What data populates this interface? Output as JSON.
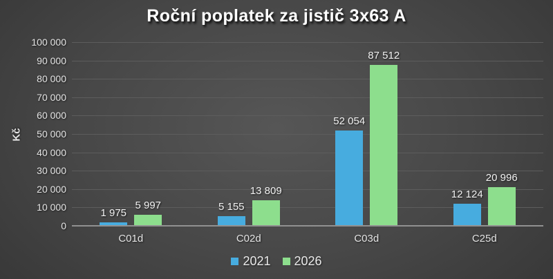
{
  "title": "Roční poplatek za jistič 3x63 A",
  "y_axis": {
    "title": "Kč",
    "ticks": [
      {
        "label": "100 000",
        "value": 100000
      },
      {
        "label": "90 000",
        "value": 90000
      },
      {
        "label": "80 000",
        "value": 80000
      },
      {
        "label": "70 000",
        "value": 70000
      },
      {
        "label": "60 000",
        "value": 60000
      },
      {
        "label": "50 000",
        "value": 50000
      },
      {
        "label": "40 000",
        "value": 40000
      },
      {
        "label": "30 000",
        "value": 30000
      },
      {
        "label": "20 000",
        "value": 20000
      },
      {
        "label": "10 000",
        "value": 10000
      },
      {
        "label": "0",
        "value": 0
      }
    ]
  },
  "chart_data": {
    "type": "bar",
    "title": "Roční poplatek za jistič 3x63 A",
    "categories": [
      "C01d",
      "C02d",
      "C03d",
      "C25d"
    ],
    "series": [
      {
        "name": "2021",
        "color": "#47ACDF",
        "values": [
          1975,
          5155,
          52054,
          12124
        ],
        "labels": [
          "1 975",
          "5 155",
          "52 054",
          "12 124"
        ]
      },
      {
        "name": "2026",
        "color": "#8DDE8D",
        "values": [
          5997,
          13809,
          87512,
          20996
        ],
        "labels": [
          "5 997",
          "13 809",
          "87 512",
          "20 996"
        ]
      }
    ],
    "xlabel": "",
    "ylabel": "Kč",
    "ylim": [
      0,
      100000
    ],
    "grid": true,
    "legend_position": "bottom"
  },
  "legend": {
    "items": [
      {
        "label": "2021",
        "color": "#47ACDF"
      },
      {
        "label": "2026",
        "color": "#8DDE8D"
      }
    ]
  },
  "colors": {
    "series_2021": "#47ACDF",
    "series_2026": "#8DDE8D",
    "gridline": "#5d5d5d",
    "axis_line": "#919191",
    "text": "#e4e4e4",
    "title_text": "#ffffff"
  }
}
